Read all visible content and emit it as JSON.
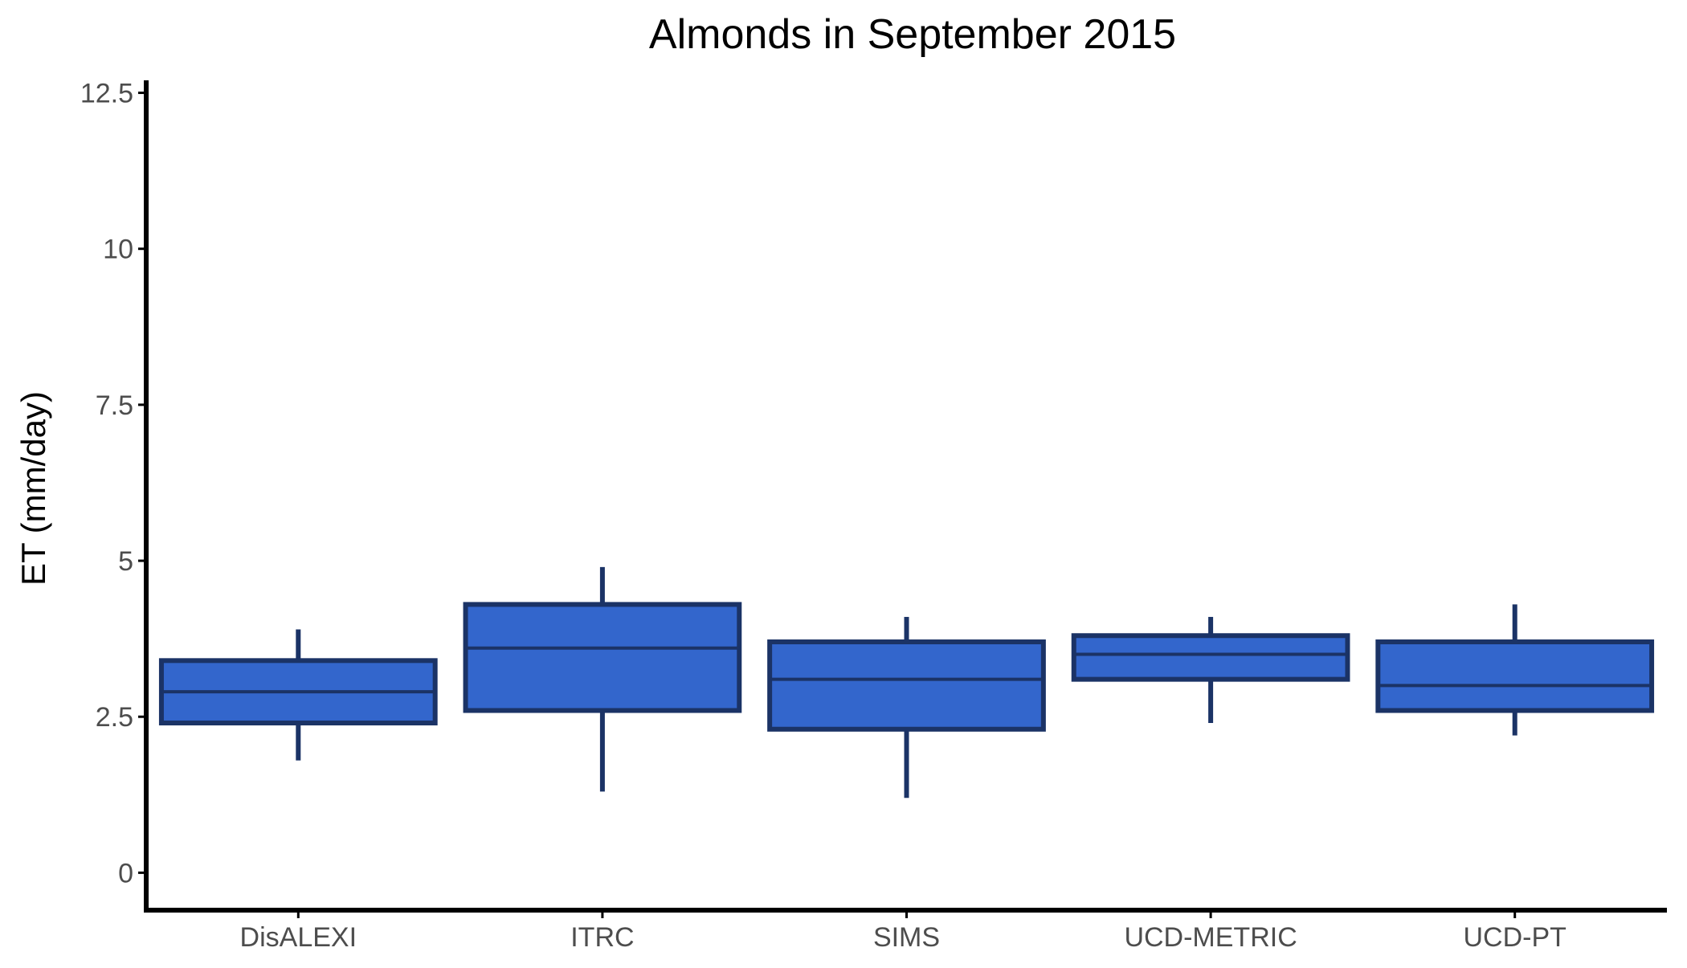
{
  "chart_data": {
    "type": "boxplot",
    "title": "Almonds in September 2015",
    "xlabel": "",
    "ylabel": "ET (mm/day)",
    "ylim": [
      -0.6,
      12.7
    ],
    "yticks": [
      0,
      2.5,
      5,
      7.5,
      10,
      12.5
    ],
    "ytick_labels": [
      "0",
      "2.5",
      "5",
      "7.5",
      "10",
      "12.5"
    ],
    "categories": [
      "DisALEXI",
      "ITRC",
      "SIMS",
      "UCD-METRIC",
      "UCD-PT"
    ],
    "boxes": [
      {
        "category": "DisALEXI",
        "whisker_low": 1.8,
        "q1": 2.4,
        "median": 2.9,
        "q3": 3.4,
        "whisker_high": 3.9
      },
      {
        "category": "ITRC",
        "whisker_low": 1.3,
        "q1": 2.6,
        "median": 3.6,
        "q3": 4.3,
        "whisker_high": 4.9
      },
      {
        "category": "SIMS",
        "whisker_low": 1.2,
        "q1": 2.3,
        "median": 3.1,
        "q3": 3.7,
        "whisker_high": 4.1
      },
      {
        "category": "UCD-METRIC",
        "whisker_low": 2.4,
        "q1": 3.1,
        "median": 3.5,
        "q3": 3.8,
        "whisker_high": 4.1
      },
      {
        "category": "UCD-PT",
        "whisker_low": 2.2,
        "q1": 2.6,
        "median": 3.0,
        "q3": 3.7,
        "whisker_high": 4.3
      }
    ],
    "grid": false,
    "legend": "none",
    "colors": {
      "box_fill": "#3366cc",
      "box_outline": "#1b3366",
      "axis": "#000000",
      "tick_label": "#4d4d4d"
    }
  }
}
